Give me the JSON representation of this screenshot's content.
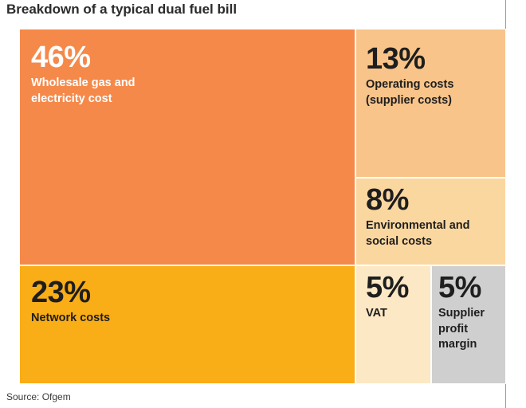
{
  "chart_data": {
    "type": "treemap",
    "title": "Breakdown of a typical dual fuel bill",
    "source": "Source: Ofgem",
    "segments": [
      {
        "value": 46,
        "pct_text": "46%",
        "label_lines": [
          "Wholesale gas and",
          "electricity cost"
        ],
        "color": "#f5894a",
        "text_color": "#ffffff"
      },
      {
        "value": 13,
        "pct_text": "13%",
        "label_lines": [
          "Operating costs",
          "(supplier costs)"
        ],
        "color": "#f8c489",
        "text_color": "#1e1e1e"
      },
      {
        "value": 8,
        "pct_text": "8%",
        "label_lines": [
          "Environmental and",
          "social costs"
        ],
        "color": "#fbd7a0",
        "text_color": "#1e1e1e"
      },
      {
        "value": 23,
        "pct_text": "23%",
        "label_lines": [
          "Network costs"
        ],
        "color": "#f9ad16",
        "text_color": "#1e1e1e"
      },
      {
        "value": 5,
        "pct_text": "5%",
        "label_lines": [
          "VAT"
        ],
        "color": "#fde8c5",
        "text_color": "#1e1e1e"
      },
      {
        "value": 5,
        "pct_text": "5%",
        "label_lines": [
          "Supplier",
          "profit",
          "margin"
        ],
        "color": "#cfcfcf",
        "text_color": "#1e1e1e"
      }
    ]
  }
}
